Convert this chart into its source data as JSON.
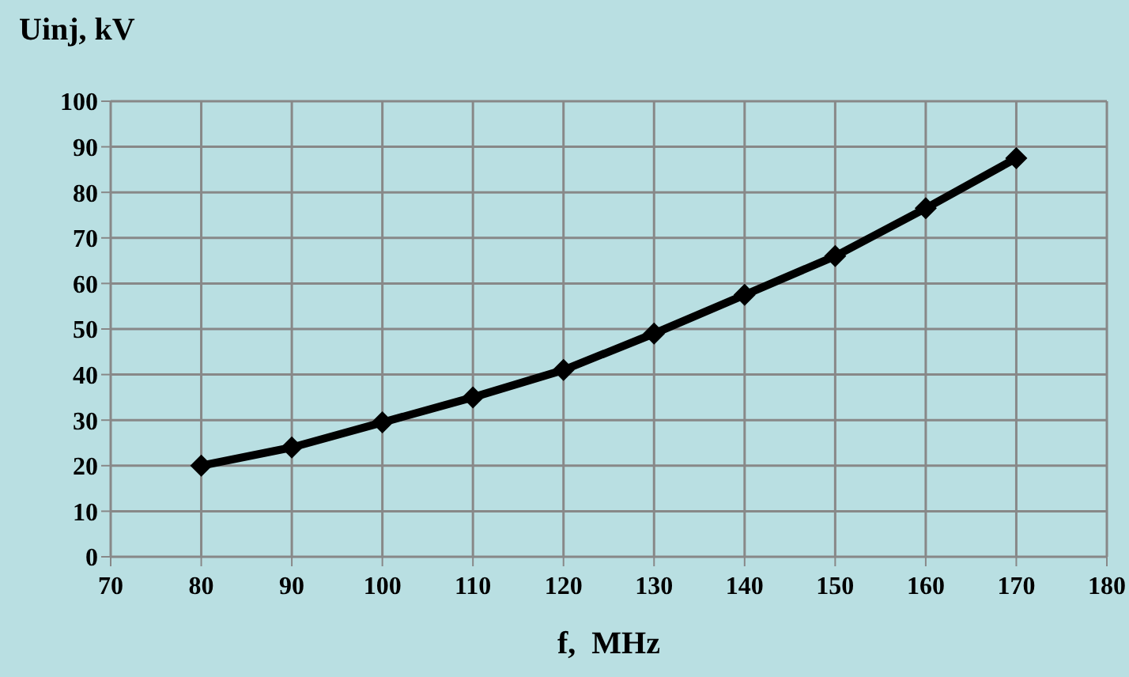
{
  "chart_data": {
    "type": "line",
    "ylabel": "Uinj, kV",
    "xlabel": "f,  MHz",
    "x": [
      80,
      90,
      100,
      110,
      120,
      130,
      140,
      150,
      160,
      170
    ],
    "series": [
      {
        "color": "#000000",
        "values": [
          20,
          24,
          29.5,
          35,
          41,
          49,
          57.5,
          66,
          76.5,
          87.5
        ]
      }
    ],
    "xlim": [
      70,
      180
    ],
    "xticks": [
      70,
      80,
      90,
      100,
      110,
      120,
      130,
      140,
      150,
      160,
      170,
      180
    ],
    "ylim": [
      0,
      100
    ],
    "yticks": [
      0,
      10,
      20,
      30,
      40,
      50,
      60,
      70,
      80,
      90,
      100
    ],
    "grid": true,
    "marker": "diamond",
    "line_style": "solid"
  }
}
